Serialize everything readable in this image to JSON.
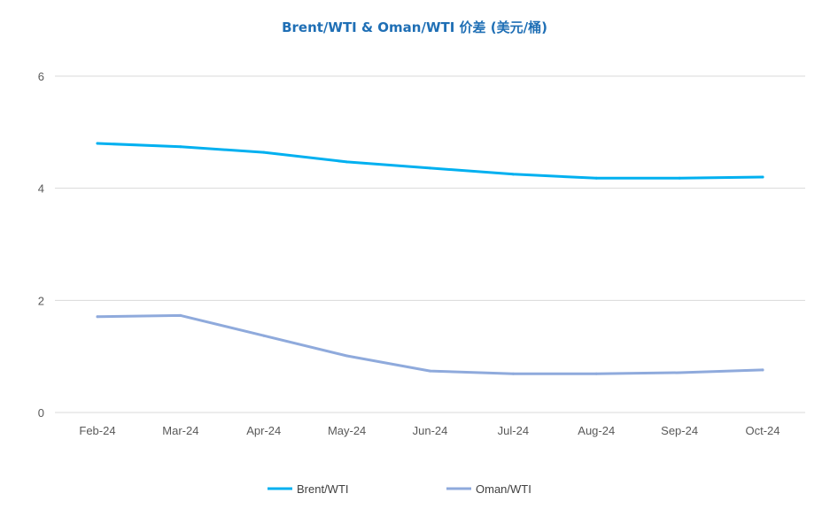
{
  "chart_data": {
    "type": "line",
    "title": "Brent/WTI & Oman/WTI 价差 (美元/桶)",
    "xlabel": "",
    "ylabel": "",
    "categories": [
      "Feb-24",
      "Mar-24",
      "Apr-24",
      "May-24",
      "Jun-24",
      "Jul-24",
      "Aug-24",
      "Sep-24",
      "Oct-24"
    ],
    "ylim": [
      0,
      6
    ],
    "yticks": [
      0,
      2,
      4,
      6
    ],
    "grid": true,
    "legend_position": "bottom",
    "series": [
      {
        "name": "Brent/WTI",
        "color": "#00b0f0",
        "values": [
          4.8,
          4.74,
          4.64,
          4.47,
          4.36,
          4.25,
          4.18,
          4.18,
          4.2
        ]
      },
      {
        "name": "Oman/WTI",
        "color": "#8faadc",
        "values": [
          1.71,
          1.73,
          1.37,
          1.01,
          0.74,
          0.69,
          0.69,
          0.71,
          0.76
        ]
      }
    ]
  }
}
